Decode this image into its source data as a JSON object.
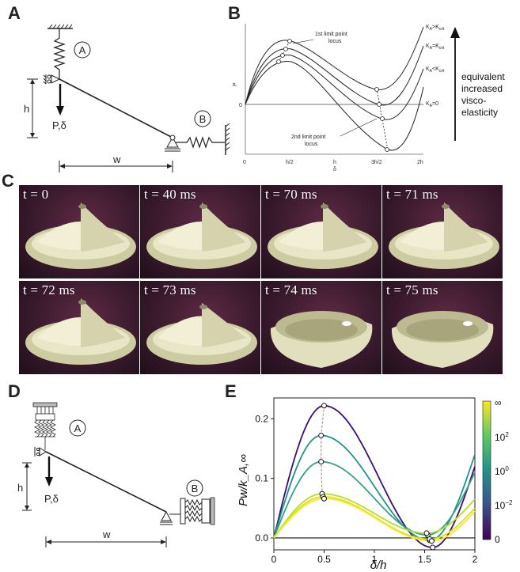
{
  "panels": {
    "A": "A",
    "B": "B",
    "C": "C",
    "D": "D",
    "E": "E"
  },
  "panelA": {
    "label_A": "A",
    "label_B": "B",
    "h": "h",
    "w": "w",
    "load": "P,δ"
  },
  "panelB": {
    "ylabel": "P",
    "yzero": "0",
    "xlabel_top": "h",
    "xlabel_bottom": "δ",
    "xticks": [
      "0",
      "h/2",
      "3h/2",
      "2h"
    ],
    "curves": [
      "K_A>K_crit",
      "K_A=K_crit",
      "K_A<K_crit",
      "K_A=0"
    ],
    "curve_labels": {
      "gt": {
        "base": "K",
        "sub_A": "A",
        ">": ">",
        "crit": "K",
        "sub_crit": "crit"
      }
    },
    "locus1": [
      "1st limit point",
      "locus"
    ],
    "locus2": [
      "2nd limit point",
      "locus"
    ],
    "arrow_text": [
      "equivalent",
      "increased",
      "visco-",
      "elasticity"
    ]
  },
  "panelC": {
    "frames": [
      "t = 0",
      "t = 40 ms",
      "t = 70 ms",
      "t = 71 ms",
      "t = 72 ms",
      "t = 73 ms",
      "t = 74 ms",
      "t = 75 ms"
    ]
  },
  "panelD": {
    "label_A": "A",
    "label_B": "B",
    "h": "h",
    "w": "w",
    "load": "P,δ"
  },
  "panelE": {
    "ylabel": "Pw/k_A,∞",
    "xlabel": "δ/h",
    "colorbar_ticks": [
      "∞",
      "10^2",
      "10^0",
      "10^-2",
      "0"
    ]
  },
  "chart_data": {
    "type": "line",
    "xlabel": "δ/h",
    "ylabel": "Pw/kA,∞",
    "xlim": [
      0,
      2
    ],
    "ylim": [
      -0.02,
      0.235
    ],
    "xticks": [
      0,
      0.5,
      1,
      1.5,
      2
    ],
    "yticks": [
      0.0,
      0.1,
      0.2
    ],
    "series": [
      {
        "color": "#3b0f70",
        "peak": [
          0.5,
          0.222
        ],
        "valley": [
          1.58,
          -0.016
        ],
        "end": 0.12
      },
      {
        "color": "#21918c",
        "peak": [
          0.47,
          0.172
        ],
        "valley": [
          1.55,
          -0.004
        ],
        "end": 0.14
      },
      {
        "color": "#35a08a",
        "peak": [
          0.47,
          0.128
        ],
        "valley": [
          1.53,
          0.005
        ],
        "end": 0.11
      },
      {
        "color": "#b5de2b",
        "peak": [
          0.48,
          0.074
        ],
        "valley": [
          1.52,
          0.008
        ],
        "end": 0.065
      },
      {
        "color": "#d8e219",
        "peak": [
          0.49,
          0.069
        ],
        "valley": [
          1.55,
          -0.002
        ],
        "end": 0.05
      },
      {
        "color": "#fde725",
        "peak": [
          0.5,
          0.066
        ],
        "valley": [
          1.57,
          -0.005
        ],
        "end": 0.045
      }
    ]
  }
}
